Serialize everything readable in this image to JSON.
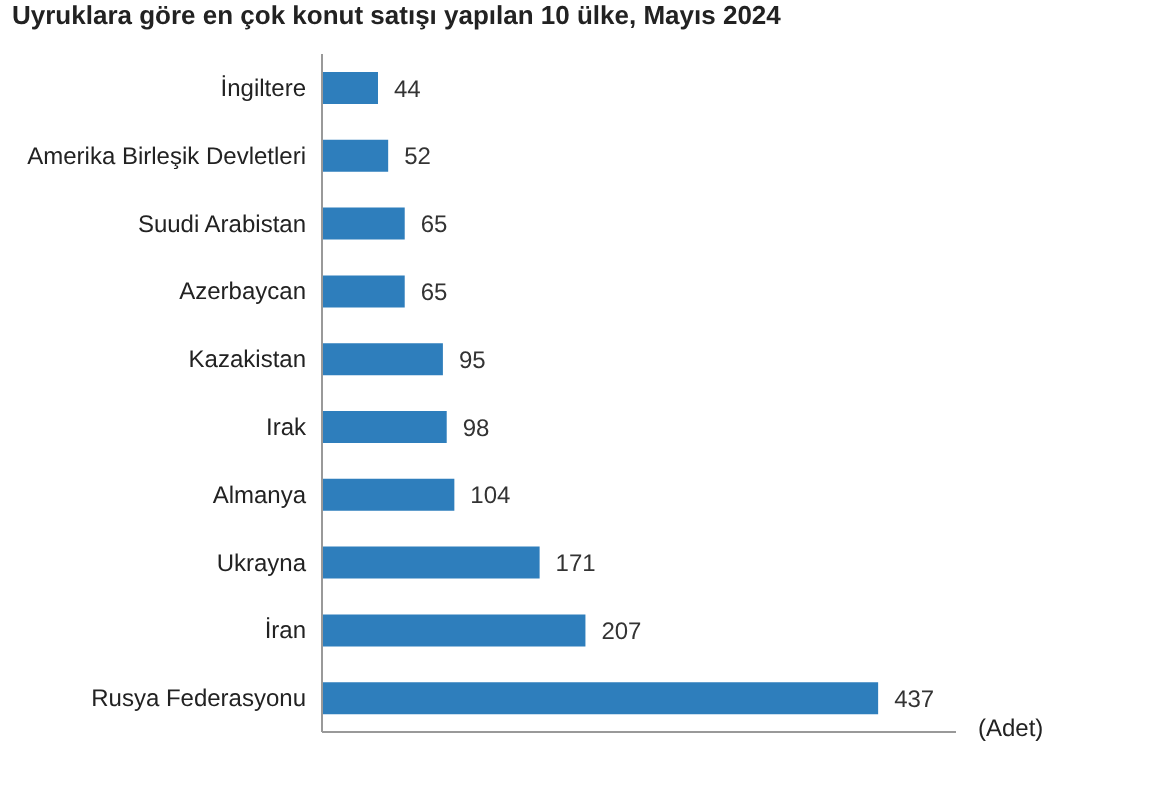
{
  "chart_data": {
    "type": "bar",
    "orientation": "horizontal",
    "title": "Uyruklara göre en çok konut satışı yapılan 10 ülke, Mayıs 2024",
    "xlabel": "(Adet)",
    "categories": [
      "İngiltere",
      "Amerika Birleşik Devletleri",
      "Suudi Arabistan",
      "Azerbaycan",
      "Kazakistan",
      "Irak",
      "Almanya",
      "Ukrayna",
      "İran",
      "Rusya Federasyonu"
    ],
    "values": [
      44,
      52,
      65,
      65,
      95,
      98,
      104,
      171,
      207,
      437
    ],
    "color": "#2e7ebc",
    "data_labels": true
  }
}
